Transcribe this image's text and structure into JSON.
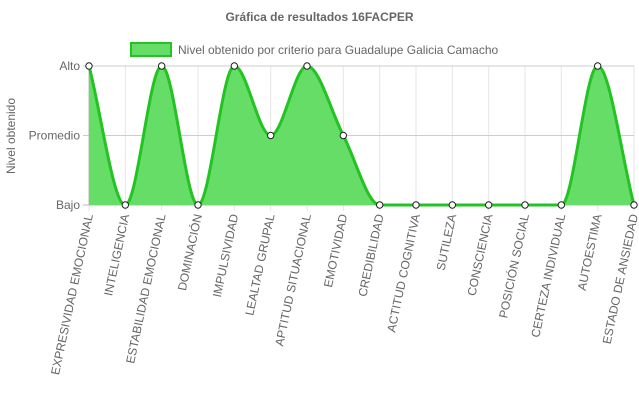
{
  "chart_data": {
    "type": "area",
    "title": "Gráfica de resultados 16FACPER",
    "ylabel": "Nivel obtenido",
    "xlabel": "",
    "y_levels": [
      "Bajo",
      "Promedio",
      "Alto"
    ],
    "categories": [
      "EXPRESIVIDAD EMOCIONAL",
      "INTELIGENCIA",
      "ESTABILIDAD EMOCIONAL",
      "DOMINACIÓN",
      "IMPULSIVIDAD",
      "LEALTAD GRUPAL",
      "APTITUD SITUACIONAL",
      "EMOTIVIDAD",
      "CREDIBILIDAD",
      "ACTITUD COGNITIVA",
      "SUTILEZA",
      "CONSCIENCIA",
      "POSICIÓN SOCIAL",
      "CERTEZA INDIVIDUAL",
      "AUTOESTIMA",
      "ESTADO DE ANSIEDAD"
    ],
    "series": [
      {
        "name": "Nivel obtenido por criterio para Guadalupe Galicia Camacho",
        "values": [
          "Alto",
          "Bajo",
          "Alto",
          "Bajo",
          "Alto",
          "Promedio",
          "Alto",
          "Promedio",
          "Bajo",
          "Bajo",
          "Bajo",
          "Bajo",
          "Bajo",
          "Bajo",
          "Alto",
          "Bajo"
        ]
      }
    ],
    "grid": true,
    "legend_position": "top",
    "colors": {
      "line": "#22c322",
      "fill": "#66dd66",
      "grid": "#e6e6e6",
      "axis": "#bbbbbb",
      "point_fill": "#ffffff"
    }
  }
}
